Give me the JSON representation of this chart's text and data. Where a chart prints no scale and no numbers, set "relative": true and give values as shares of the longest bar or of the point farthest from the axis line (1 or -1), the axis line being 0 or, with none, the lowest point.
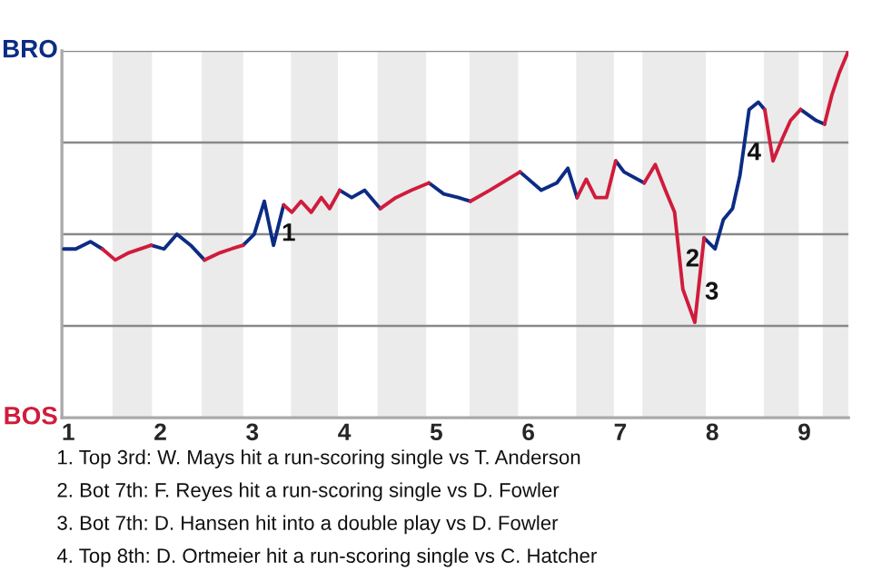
{
  "chart_data": {
    "type": "line",
    "x": [
      0.95,
      1.08,
      1.24,
      1.37,
      1.51,
      1.66,
      1.9,
      2.04,
      2.18,
      2.33,
      2.48,
      2.65,
      2.77,
      2.9,
      3.02,
      3.13,
      3.23,
      3.34,
      3.43,
      3.53,
      3.64,
      3.75,
      3.84,
      3.95,
      4.08,
      4.22,
      4.39,
      4.56,
      4.73,
      4.92,
      5.08,
      5.24,
      5.37,
      5.58,
      5.91,
      6.14,
      6.31,
      6.43,
      6.53,
      6.63,
      6.73,
      6.85,
      6.95,
      7.04,
      7.26,
      7.38,
      7.49,
      7.59,
      7.68,
      7.81,
      7.91,
      8.03,
      8.12,
      8.22,
      8.3,
      8.4,
      8.5,
      8.57,
      8.66,
      8.76,
      8.85,
      8.96,
      9.13,
      9.22,
      9.3,
      9.38,
      9.48
    ],
    "series": [
      {
        "color": "#0c2c84",
        "values": [
          0.46,
          0.46,
          0.48,
          0.46,
          null,
          null,
          0.47,
          0.46,
          0.5,
          0.47,
          0.43,
          null,
          null,
          0.47,
          0.5,
          0.59,
          0.47,
          0.58,
          null,
          null,
          null,
          null,
          null,
          0.62,
          0.6,
          0.62,
          0.57,
          null,
          null,
          0.64,
          0.61,
          0.6,
          0.59,
          null,
          0.67,
          0.62,
          0.64,
          0.68,
          0.6,
          null,
          null,
          null,
          0.7,
          0.67,
          0.64,
          null,
          null,
          null,
          null,
          null,
          0.49,
          0.46,
          0.54,
          0.57,
          0.66,
          0.84,
          0.86,
          0.84,
          null,
          null,
          null,
          0.84,
          0.81,
          0.8,
          null,
          null,
          null
        ]
      },
      {
        "color": "#d01c3c",
        "values": [
          null,
          null,
          null,
          0.46,
          0.43,
          0.45,
          0.47,
          null,
          null,
          null,
          0.43,
          0.45,
          0.46,
          0.47,
          null,
          null,
          null,
          0.58,
          0.56,
          0.59,
          0.56,
          0.6,
          0.57,
          0.62,
          null,
          null,
          0.57,
          0.6,
          0.62,
          0.64,
          null,
          null,
          0.59,
          0.62,
          0.67,
          null,
          null,
          null,
          0.6,
          0.65,
          0.6,
          0.6,
          0.7,
          null,
          0.64,
          0.69,
          0.62,
          0.56,
          0.35,
          0.26,
          0.49,
          null,
          null,
          null,
          null,
          null,
          null,
          0.84,
          0.7,
          0.76,
          0.81,
          0.84,
          null,
          0.8,
          0.88,
          0.94,
          1.0
        ]
      }
    ],
    "xlim": [
      0.93,
      9.48
    ],
    "xticks": [
      1,
      2,
      3,
      4,
      5,
      6,
      7,
      8,
      9
    ],
    "relative": true,
    "grid": "y",
    "bands": [
      {
        "axis": "x",
        "from": 1.48,
        "to": 1.91,
        "color": "#ebebeb"
      },
      {
        "axis": "x",
        "from": 2.45,
        "to": 2.9,
        "color": "#ebebeb"
      },
      {
        "axis": "x",
        "from": 3.42,
        "to": 3.93,
        "color": "#ebebeb"
      },
      {
        "axis": "x",
        "from": 4.36,
        "to": 4.89,
        "color": "#ebebeb"
      },
      {
        "axis": "x",
        "from": 5.36,
        "to": 5.89,
        "color": "#ebebeb"
      },
      {
        "axis": "x",
        "from": 6.52,
        "to": 6.93,
        "color": "#ebebeb"
      },
      {
        "axis": "x",
        "from": 7.24,
        "to": 7.93,
        "color": "#ebebeb"
      },
      {
        "axis": "x",
        "from": 8.56,
        "to": 8.94,
        "color": "#ebebeb"
      },
      {
        "axis": "x",
        "from": 9.2,
        "to": 9.48,
        "color": "#ebebeb"
      }
    ],
    "annotations": [
      {
        "text": "1",
        "x": 3.25,
        "y": 0.5
      },
      {
        "text": "2",
        "x": 7.64,
        "y": 0.43
      },
      {
        "text": "3",
        "x": 7.85,
        "y": 0.34
      },
      {
        "text": "4",
        "x": 8.31,
        "y": 0.72
      },
      "BRO",
      "BOS",
      "1. Top 3rd: W. Mays hit a run-scoring single vs T. Anderson",
      "2. Bot 7th: F. Reyes hit a run-scoring single vs D. Fowler",
      "3. Bot 7th: D. Hansen hit into a double play vs D. Fowler",
      "4. Top 8th: D. Ortmeier hit a run-scoring single vs C. Hatcher"
    ]
  }
}
